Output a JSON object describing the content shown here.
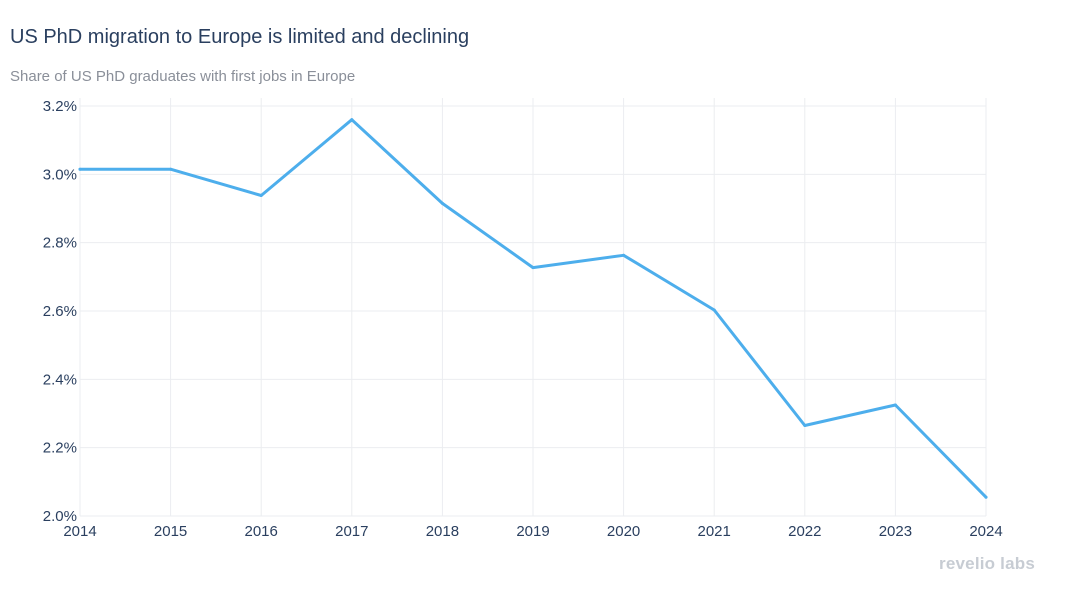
{
  "chart_data": {
    "type": "line",
    "title": "US PhD migration to Europe is limited and declining",
    "subtitle": "Share of US PhD graduates with first jobs in Europe",
    "xlabel": "",
    "ylabel": "",
    "x": [
      2014,
      2015,
      2016,
      2017,
      2018,
      2019,
      2020,
      2021,
      2022,
      2023,
      2024
    ],
    "series": [
      {
        "values": [
          3.015,
          3.015,
          2.938,
          3.16,
          2.915,
          2.727,
          2.763,
          2.603,
          2.265,
          2.325,
          2.055
        ]
      }
    ],
    "xlim": [
      2014,
      2024
    ],
    "ylim": [
      2.0,
      3.2
    ],
    "x_ticks": [
      "2014",
      "2015",
      "2016",
      "2017",
      "2018",
      "2019",
      "2020",
      "2021",
      "2022",
      "2023",
      "2024"
    ],
    "y_ticks": [
      {
        "value": 2.0,
        "label": "2.0%"
      },
      {
        "value": 2.2,
        "label": "2.2%"
      },
      {
        "value": 2.4,
        "label": "2.4%"
      },
      {
        "value": 2.6,
        "label": "2.6%"
      },
      {
        "value": 2.8,
        "label": "2.8%"
      },
      {
        "value": 3.0,
        "label": "3.0%"
      },
      {
        "value": 3.2,
        "label": "3.2%"
      }
    ],
    "grid": true,
    "line_color": "#4daeec",
    "grid_color": "#ebedf0"
  },
  "branding": {
    "logo_text": "revelio labs"
  }
}
